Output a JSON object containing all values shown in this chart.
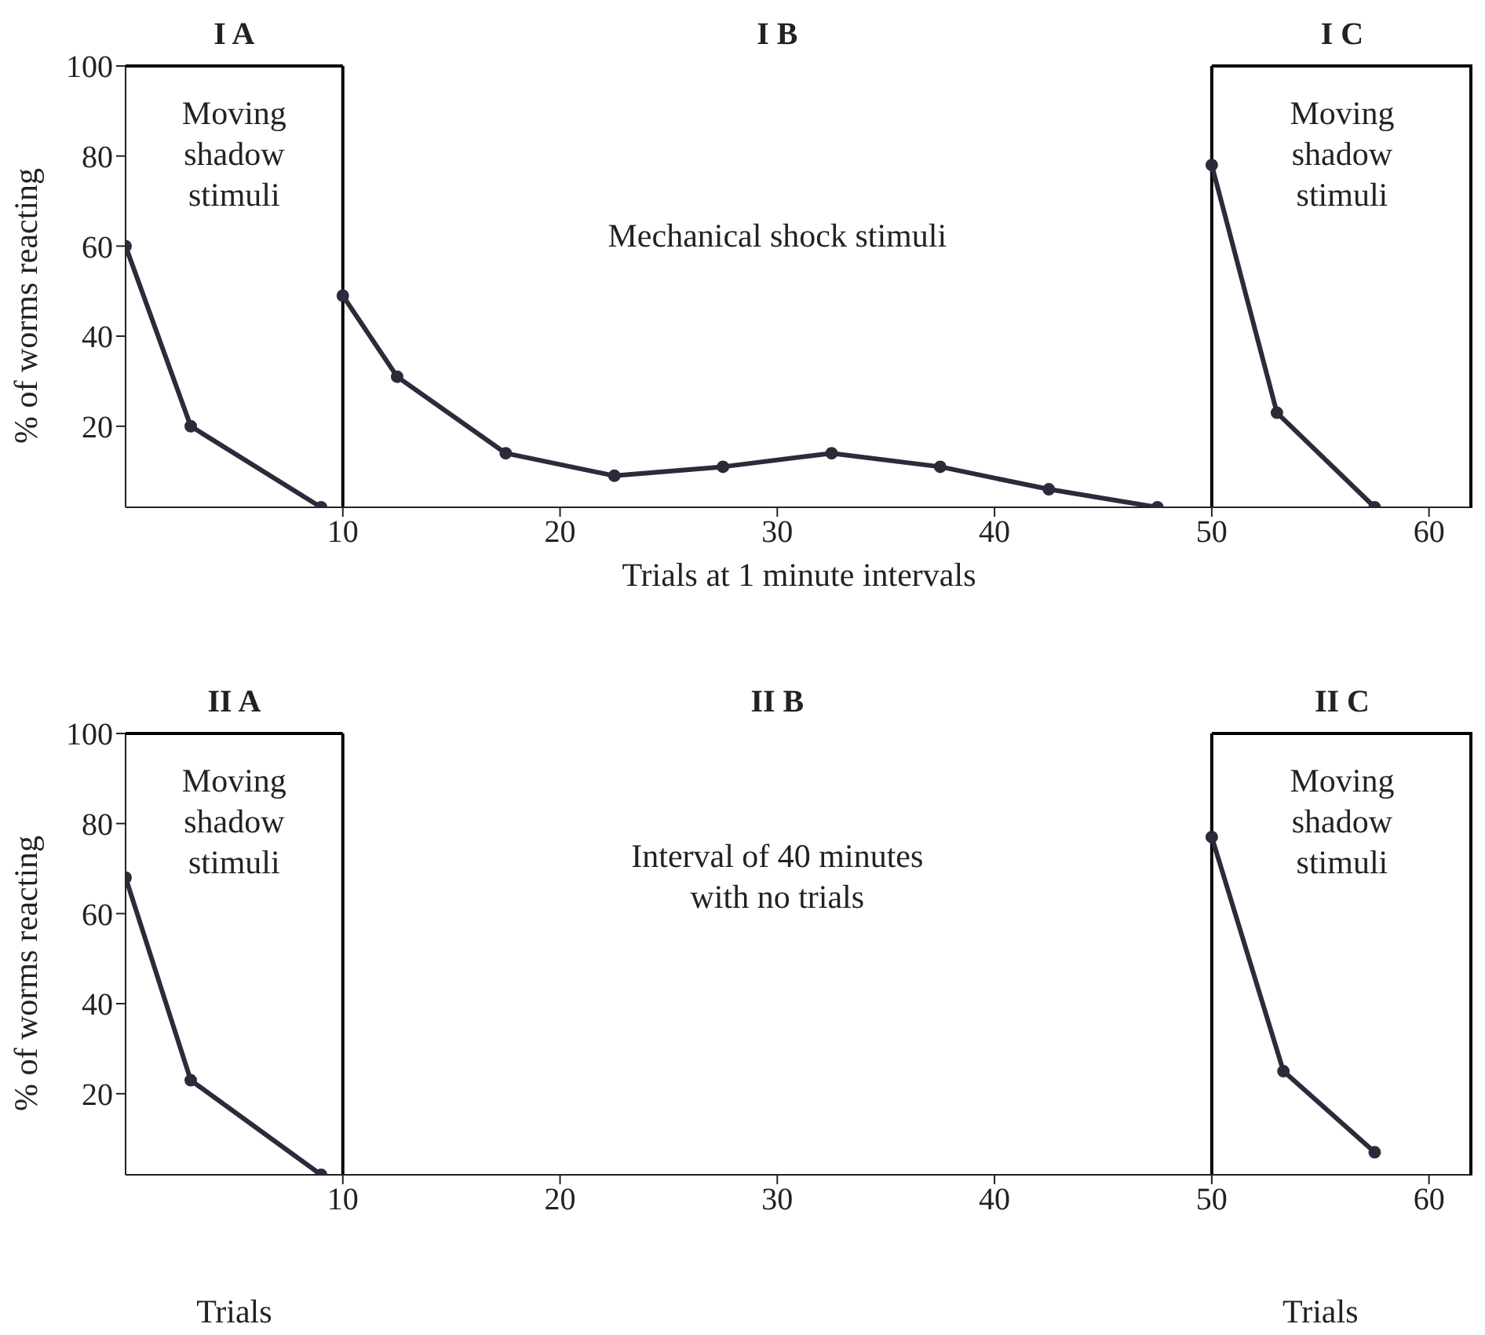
{
  "chart_data": [
    {
      "type": "line",
      "xlabel": "Trials at 1 minute intervals",
      "ylabel": "% of worms reacting",
      "xlim": [
        0,
        62
      ],
      "xticks": [
        10,
        20,
        30,
        40,
        50,
        60
      ],
      "ylim": [
        2,
        100
      ],
      "yticks": [
        20,
        40,
        60,
        80,
        100
      ],
      "marker": "circle",
      "line_style": "solid",
      "ref_lines": [
        {
          "axis": "x",
          "value": 10,
          "color": "#000000"
        },
        {
          "axis": "x",
          "value": 50,
          "color": "#000000"
        }
      ],
      "annotations": [
        "I A",
        "I B",
        "I C",
        "Moving\nshadow\nstimuli",
        "Mechanical shock stimuli",
        "Moving\nshadow\nstimuli"
      ],
      "series": [
        {
          "color": "#2b2b3b",
          "x": [
            0,
            3,
            9
          ],
          "values": [
            60,
            20,
            2
          ]
        },
        {
          "color": "#2b2b3b",
          "x": [
            10,
            12.5,
            17.5,
            22.5,
            27.5,
            32.5,
            37.5,
            42.5,
            47.5
          ],
          "values": [
            49,
            31,
            14,
            9,
            11,
            14,
            11,
            6,
            2
          ]
        },
        {
          "color": "#2b2b3b",
          "x": [
            50,
            53,
            57.5
          ],
          "values": [
            78,
            23,
            2
          ]
        }
      ]
    },
    {
      "type": "line",
      "ylabel": "% of worms reacting",
      "xlim": [
        0,
        62
      ],
      "xticks": [
        10,
        20,
        30,
        40,
        50,
        60
      ],
      "ylim": [
        2,
        100
      ],
      "yticks": [
        20,
        40,
        60,
        80,
        100
      ],
      "marker": "circle",
      "line_style": "solid",
      "ref_lines": [
        {
          "axis": "x",
          "value": 10,
          "color": "#000000"
        },
        {
          "axis": "x",
          "value": 50,
          "color": "#000000"
        }
      ],
      "annotations": [
        "II A",
        "II B",
        "II C",
        "Moving\nshadow\nstimuli",
        "Interval of 40 minutes\nwith no trials",
        "Moving\nshadow\nstimuli",
        "Trials",
        "Trials"
      ],
      "series": [
        {
          "color": "#2b2b3b",
          "x": [
            0,
            3,
            9
          ],
          "values": [
            68,
            23,
            2
          ]
        },
        {
          "color": "#2b2b3b",
          "x": [
            50,
            53.3,
            57.5
          ],
          "values": [
            77,
            25,
            7
          ]
        }
      ]
    }
  ]
}
